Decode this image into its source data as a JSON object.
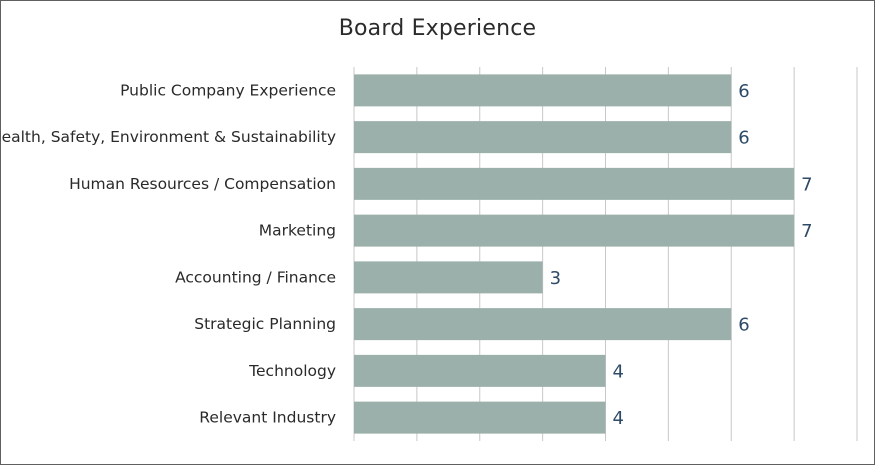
{
  "chart_data": {
    "type": "bar",
    "orientation": "horizontal",
    "title": "Board Experience",
    "xlabel": "",
    "ylabel": "",
    "xlim": [
      0,
      8
    ],
    "grid": true,
    "bar_color": "#9cb0ab",
    "value_label_color": "#2d4a66",
    "categories": [
      "Public Company Experience",
      "Health, Safety, Environment & Sustainability",
      "Human Resources / Compensation",
      "Marketing",
      "Accounting / Finance",
      "Strategic Planning",
      "Technology",
      "Relevant Industry"
    ],
    "values": [
      6,
      6,
      7,
      7,
      3,
      6,
      4,
      4
    ]
  }
}
